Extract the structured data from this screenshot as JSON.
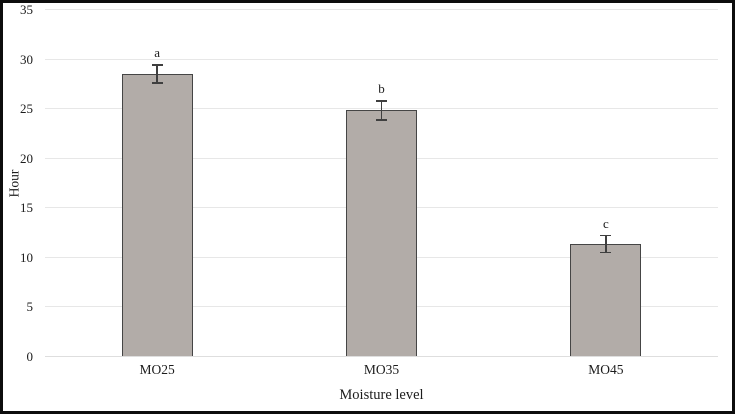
{
  "figure": {
    "background": "#ffffff",
    "frame_color": "#0d0d0d",
    "text_color": "#1c1c1c"
  },
  "chart_data": {
    "type": "bar",
    "title": "",
    "categories": [
      "MO25",
      "MO35",
      "MO45"
    ],
    "values": [
      28.5,
      24.8,
      11.3
    ],
    "error_bars": [
      0.9,
      0.95,
      0.85
    ],
    "significance_letters": [
      "a",
      "b",
      "c"
    ],
    "xlabel": "Moisture level",
    "ylabel": "Hour",
    "ylim": [
      0,
      35
    ],
    "yticks": [
      0,
      5,
      10,
      15,
      20,
      25,
      30,
      35
    ],
    "grid": true,
    "legend_position": "none",
    "bar_color": "#b2aca8",
    "bar_border_color": "#454545",
    "error_bar_color": "#3f3f3f",
    "gridline_color": "#e7e7e7",
    "baseline_color": "#dedede"
  }
}
